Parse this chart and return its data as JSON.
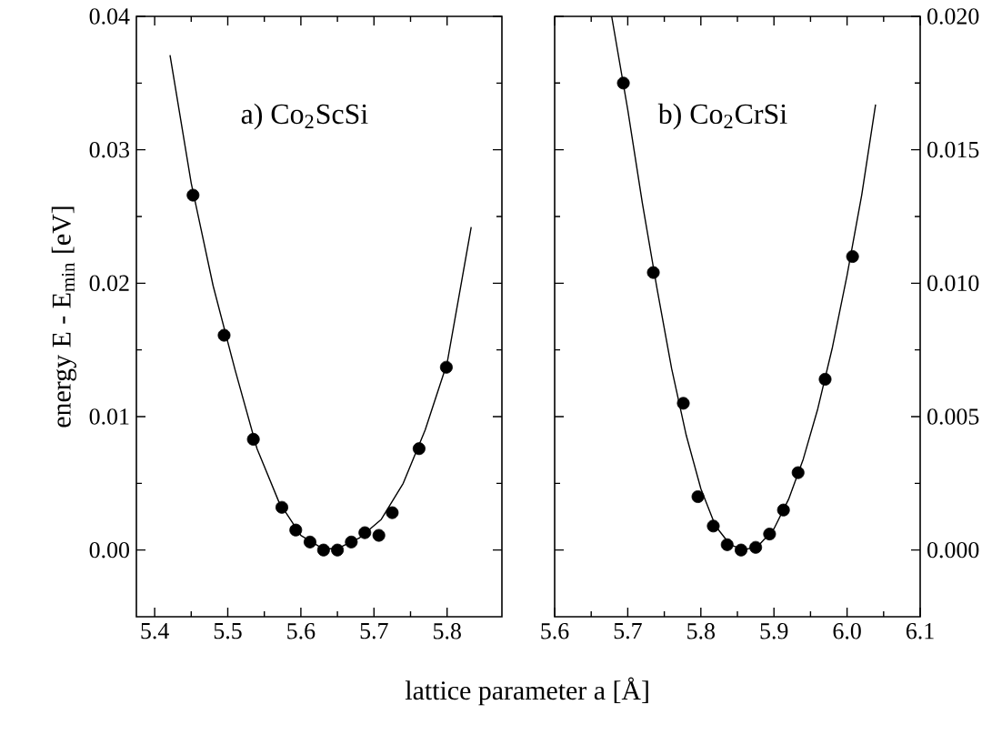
{
  "chart_data": [
    {
      "type": "scatter",
      "title": "a) Co$_{2}$ScSi",
      "xlabel": "lattice parameter a [Å]",
      "ylabel": "energy E - E$_{min}$ [eV]",
      "xlim": [
        5.375,
        5.875
      ],
      "ylim": [
        -0.005,
        0.04
      ],
      "xticks": [
        5.4,
        5.5,
        5.6,
        5.7,
        5.8
      ],
      "yticks": [
        {
          "value": 0,
          "label": "0.00"
        },
        {
          "value": 0.01,
          "label": "0.01"
        },
        {
          "value": 0.02,
          "label": "0.02"
        },
        {
          "value": 0.03,
          "label": "0.03"
        },
        {
          "value": 0.04,
          "label": "0.04"
        }
      ],
      "series": [
        {
          "marker": "circle",
          "color": "#000000",
          "x": [
            5.4525,
            5.495,
            5.535,
            5.574,
            5.593,
            5.6125,
            5.631,
            5.65,
            5.669,
            5.6875,
            5.7067,
            5.725,
            5.7617,
            5.799
          ],
          "values": [
            0.0266,
            0.0161,
            0.0083,
            0.0032,
            0.0015,
            0.0006,
            0.0,
            0.0,
            0.0006,
            0.0013,
            0.0011,
            0.0028,
            0.0076,
            0.0137
          ]
        },
        {
          "type": "line",
          "marker": "none",
          "color": "#000000",
          "x": [
            5.421,
            5.45,
            5.48,
            5.51,
            5.54,
            5.57,
            5.6,
            5.63,
            5.65,
            5.68,
            5.71,
            5.74,
            5.77,
            5.8,
            5.833
          ],
          "values": [
            0.0371,
            0.0275,
            0.0198,
            0.0135,
            0.0076,
            0.0036,
            0.0011,
            0.0001,
            0.0001,
            0.0009,
            0.0023,
            0.005,
            0.009,
            0.014,
            0.0242
          ]
        }
      ]
    },
    {
      "type": "scatter",
      "title": "b) Co$_{2}$CrSi",
      "xlim": [
        5.6,
        6.1
      ],
      "ylim": [
        -0.0025,
        0.02
      ],
      "xticks": [
        {
          "value": 5.6,
          "label": "5.6"
        },
        {
          "value": 5.7,
          "label": "5.7"
        },
        {
          "value": 5.8,
          "label": "5.8"
        },
        {
          "value": 5.9,
          "label": "5.9"
        },
        {
          "value": 6.0,
          "label": "6.0"
        },
        {
          "value": 6.1,
          "label": "6.1"
        }
      ],
      "yticks": [
        {
          "value": 0,
          "label": "0.000"
        },
        {
          "value": 0.005,
          "label": "0.005"
        },
        {
          "value": 0.01,
          "label": "0.010"
        },
        {
          "value": 0.015,
          "label": "0.015"
        },
        {
          "value": 0.02,
          "label": "0.020"
        }
      ],
      "series": [
        {
          "marker": "circle",
          "color": "#000000",
          "x": [
            5.694,
            5.735,
            5.776,
            5.796,
            5.817,
            5.836,
            5.855,
            5.875,
            5.894,
            5.913,
            5.933,
            5.97,
            6.0075
          ],
          "values": [
            0.0175,
            0.0104,
            0.0055,
            0.002,
            0.0009,
            0.0002,
            0.0,
            0.0001,
            0.0006,
            0.0015,
            0.0029,
            0.0064,
            0.011
          ]
        },
        {
          "type": "line",
          "marker": "none",
          "color": "#000000",
          "x": [
            5.678,
            5.7,
            5.72,
            5.74,
            5.76,
            5.78,
            5.8,
            5.82,
            5.84,
            5.86,
            5.88,
            5.9,
            5.92,
            5.94,
            5.96,
            5.98,
            6.0,
            6.02,
            6.039
          ],
          "values": [
            0.02,
            0.0165,
            0.013,
            0.0098,
            0.0068,
            0.0043,
            0.0023,
            0.0009,
            0.0002,
            0.0,
            0.0002,
            0.0008,
            0.0019,
            0.0034,
            0.0053,
            0.0076,
            0.0103,
            0.0133,
            0.0167
          ]
        }
      ]
    }
  ]
}
